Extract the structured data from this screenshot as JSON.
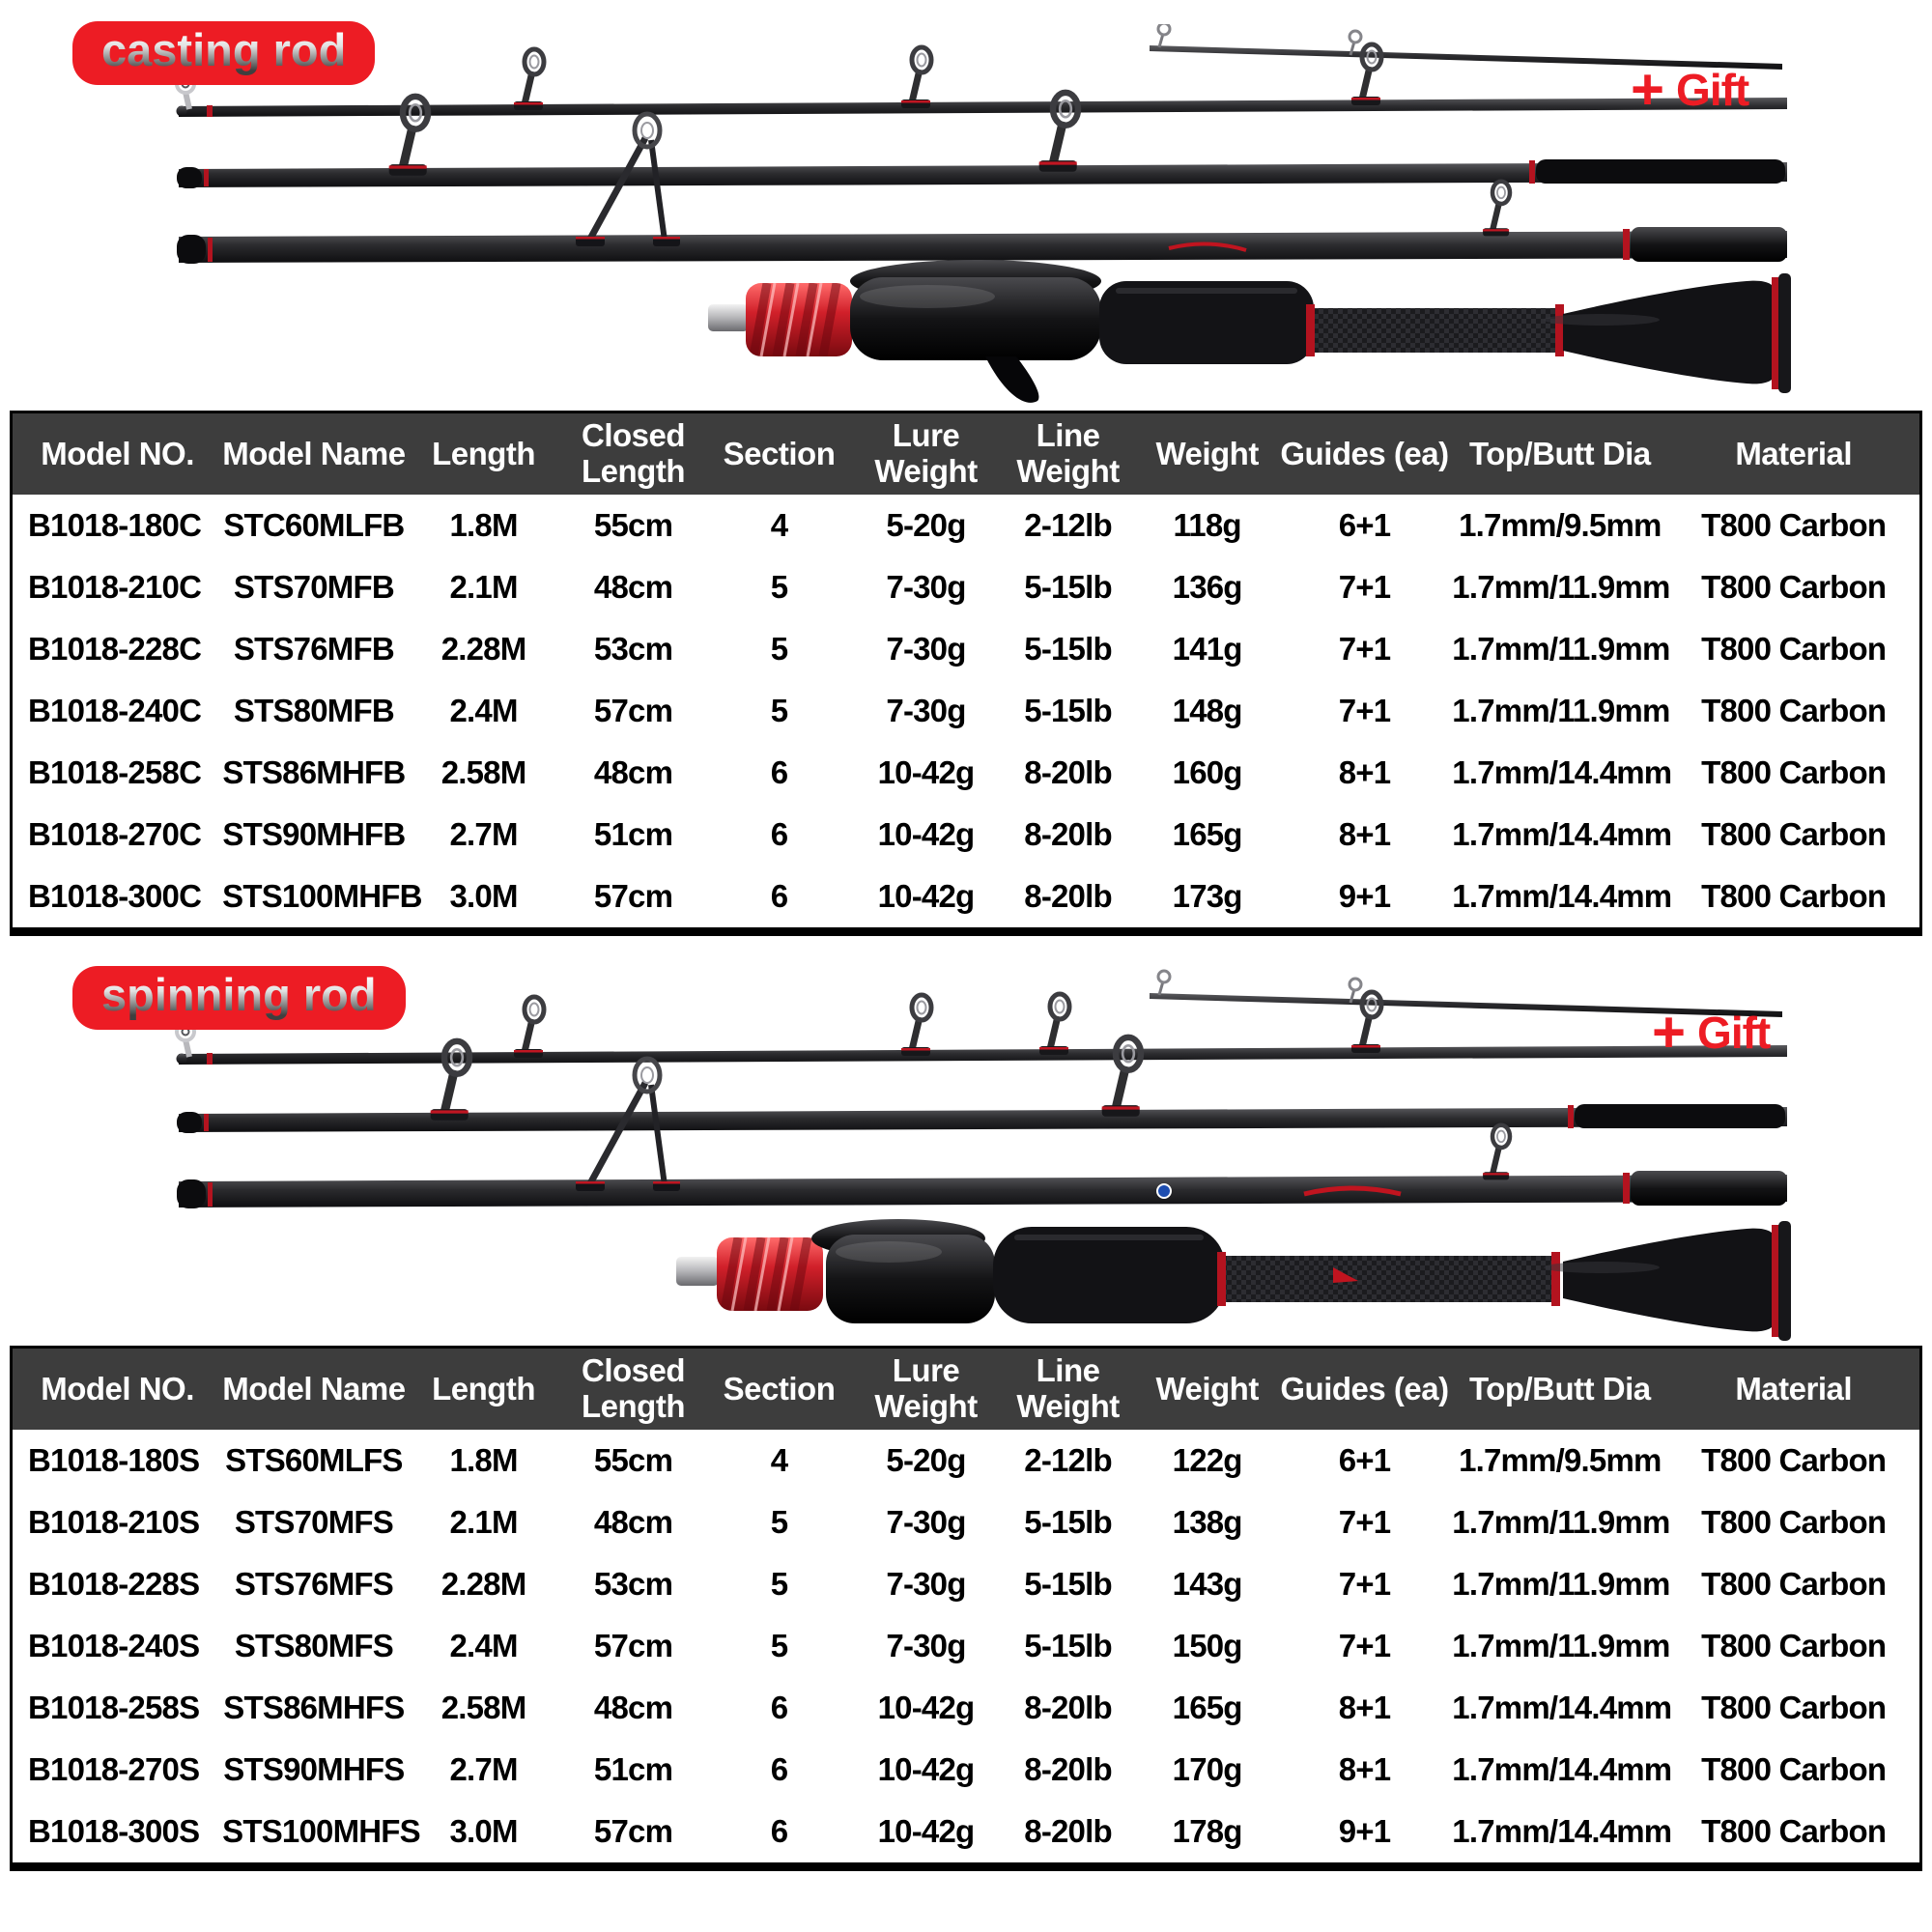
{
  "colors": {
    "accent_red": "#ed1c24",
    "table_header_bg": "#3d3d3d",
    "table_header_text": "#ffffff",
    "table_body_text": "#000000",
    "table_border": "#000000",
    "rod_dark": "#1a1a1e"
  },
  "sections": [
    {
      "badge": "casting rod",
      "gift": {
        "plus": "+",
        "label": "Gift"
      },
      "table": {
        "headers": [
          "Model NO.",
          "Model Name",
          "Length",
          "Closed\nLength",
          "Section",
          "Lure\nWeight",
          "Line\nWeight",
          "Weight",
          "Guides (ea)",
          "Top/Butt Dia",
          "Material"
        ],
        "rows": [
          [
            "B1018-180C",
            "STC60MLFB",
            "1.8M",
            "55cm",
            "4",
            "5-20g",
            "2-12lb",
            "118g",
            "6+1",
            "1.7mm/9.5mm",
            "T800 Carbon"
          ],
          [
            "B1018-210C",
            "STS70MFB",
            "2.1M",
            "48cm",
            "5",
            "7-30g",
            "5-15lb",
            "136g",
            "7+1",
            "1.7mm/11.9mm",
            "T800 Carbon"
          ],
          [
            "B1018-228C",
            "STS76MFB",
            "2.28M",
            "53cm",
            "5",
            "7-30g",
            "5-15lb",
            "141g",
            "7+1",
            "1.7mm/11.9mm",
            "T800 Carbon"
          ],
          [
            "B1018-240C",
            "STS80MFB",
            "2.4M",
            "57cm",
            "5",
            "7-30g",
            "5-15lb",
            "148g",
            "7+1",
            "1.7mm/11.9mm",
            "T800 Carbon"
          ],
          [
            "B1018-258C",
            "STS86MHFB",
            "2.58M",
            "48cm",
            "6",
            "10-42g",
            "8-20lb",
            "160g",
            "8+1",
            "1.7mm/14.4mm",
            "T800 Carbon"
          ],
          [
            "B1018-270C",
            "STS90MHFB",
            "2.7M",
            "51cm",
            "6",
            "10-42g",
            "8-20lb",
            "165g",
            "8+1",
            "1.7mm/14.4mm",
            "T800 Carbon"
          ],
          [
            "B1018-300C",
            "STS100MHFB",
            "3.0M",
            "57cm",
            "6",
            "10-42g",
            "8-20lb",
            "173g",
            "9+1",
            "1.7mm/14.4mm",
            "T800 Carbon"
          ]
        ]
      }
    },
    {
      "badge": "spinning rod",
      "gift": {
        "plus": "+",
        "label": "Gift"
      },
      "table": {
        "headers": [
          "Model NO.",
          "Model Name",
          "Length",
          "Closed\nLength",
          "Section",
          "Lure\nWeight",
          "Line\nWeight",
          "Weight",
          "Guides (ea)",
          "Top/Butt Dia",
          "Material"
        ],
        "rows": [
          [
            "B1018-180S",
            "STS60MLFS",
            "1.8M",
            "55cm",
            "4",
            "5-20g",
            "2-12lb",
            "122g",
            "6+1",
            "1.7mm/9.5mm",
            "T800 Carbon"
          ],
          [
            "B1018-210S",
            "STS70MFS",
            "2.1M",
            "48cm",
            "5",
            "7-30g",
            "5-15lb",
            "138g",
            "7+1",
            "1.7mm/11.9mm",
            "T800 Carbon"
          ],
          [
            "B1018-228S",
            "STS76MFS",
            "2.28M",
            "53cm",
            "5",
            "7-30g",
            "5-15lb",
            "143g",
            "7+1",
            "1.7mm/11.9mm",
            "T800 Carbon"
          ],
          [
            "B1018-240S",
            "STS80MFS",
            "2.4M",
            "57cm",
            "5",
            "7-30g",
            "5-15lb",
            "150g",
            "7+1",
            "1.7mm/11.9mm",
            "T800 Carbon"
          ],
          [
            "B1018-258S",
            "STS86MHFS",
            "2.58M",
            "48cm",
            "6",
            "10-42g",
            "8-20lb",
            "165g",
            "8+1",
            "1.7mm/14.4mm",
            "T800 Carbon"
          ],
          [
            "B1018-270S",
            "STS90MHFS",
            "2.7M",
            "51cm",
            "6",
            "10-42g",
            "8-20lb",
            "170g",
            "8+1",
            "1.7mm/14.4mm",
            "T800 Carbon"
          ],
          [
            "B1018-300S",
            "STS100MHFS",
            "3.0M",
            "57cm",
            "6",
            "10-42g",
            "8-20lb",
            "178g",
            "9+1",
            "1.7mm/14.4mm",
            "T800 Carbon"
          ]
        ]
      }
    }
  ]
}
